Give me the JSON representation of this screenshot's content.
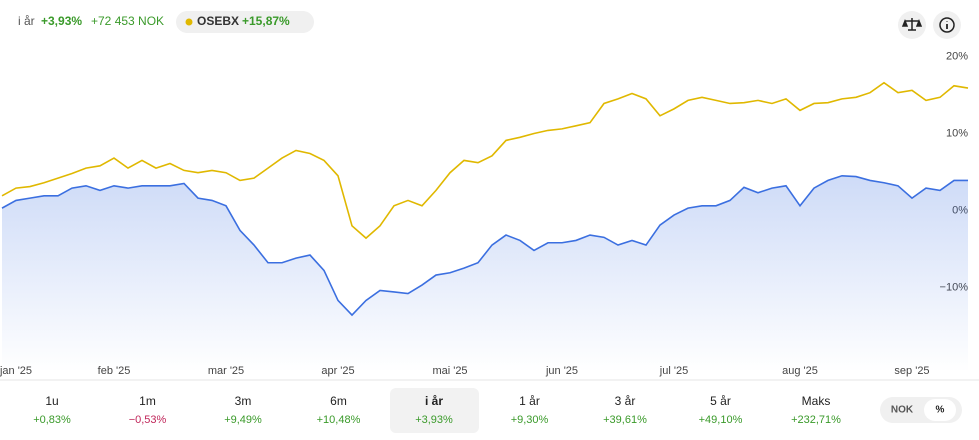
{
  "header": {
    "period": "i år",
    "change": "+3,93%",
    "amount": "+72 453 NOK",
    "benchmark_change": "+15,87%"
  },
  "chart_data": {
    "type": "line",
    "categories": [
      null,
      "jan '25",
      null,
      null,
      null,
      null,
      null,
      null,
      "feb '25",
      null,
      null,
      null,
      null,
      null,
      null,
      null,
      "mar '25",
      null,
      null,
      null,
      null,
      null,
      null,
      null,
      "apr '25",
      null,
      null,
      null,
      null,
      null,
      null,
      null,
      "mai '25",
      null,
      null,
      null,
      null,
      null,
      null,
      null,
      "jun '25",
      null,
      null,
      null,
      null,
      null,
      null,
      null,
      "jul '25",
      null,
      null,
      null,
      null,
      null,
      null,
      null,
      null,
      "aug '25",
      null,
      null,
      null,
      null,
      null,
      null,
      null,
      "sep '25",
      null,
      null,
      null,
      null
    ],
    "series": [
      {
        "color": "#3b6fe0",
        "values": [
          0.3,
          1.3,
          1.6,
          1.9,
          1.9,
          2.9,
          3.2,
          2.6,
          3.2,
          2.9,
          3.2,
          3.2,
          3.2,
          3.5,
          1.6,
          1.3,
          0.6,
          -2.6,
          -4.5,
          -6.8,
          -6.8,
          -6.2,
          -5.8,
          -7.8,
          -11.7,
          -13.6,
          -11.7,
          -10.4,
          -10.6,
          -10.8,
          -9.7,
          -8.4,
          -8.1,
          -7.5,
          -6.8,
          -4.5,
          -3.2,
          -3.9,
          -5.2,
          -4.2,
          -4.2,
          -3.9,
          -3.2,
          -3.5,
          -4.5,
          -3.9,
          -4.5,
          -1.9,
          -0.6,
          0.3,
          0.6,
          0.6,
          1.3,
          3.0,
          2.3,
          2.9,
          3.2,
          0.6,
          2.9,
          3.9,
          4.5,
          4.4,
          3.9,
          3.6,
          3.2,
          1.6,
          2.9,
          2.6,
          3.9,
          3.9
        ]
      },
      {
        "name": "OSEBX",
        "color": "#e0b800",
        "values": [
          1.9,
          2.9,
          3.1,
          3.6,
          4.2,
          4.8,
          5.5,
          5.8,
          6.8,
          5.5,
          6.5,
          5.5,
          6.1,
          5.2,
          4.9,
          5.2,
          4.9,
          3.9,
          4.2,
          5.5,
          6.8,
          7.8,
          7.4,
          6.5,
          4.5,
          -2.0,
          -3.6,
          -2.0,
          0.6,
          1.3,
          0.6,
          2.6,
          4.9,
          6.5,
          6.2,
          7.1,
          9.1,
          9.5,
          10.0,
          10.4,
          10.6,
          11.0,
          11.4,
          13.9,
          14.5,
          15.2,
          14.5,
          12.3,
          13.2,
          14.3,
          14.7,
          14.3,
          13.9,
          14.0,
          14.3,
          13.9,
          14.5,
          13.0,
          13.9,
          14.0,
          14.5,
          14.7,
          15.3,
          16.6,
          15.3,
          15.6,
          14.3,
          14.7,
          16.2,
          15.9
        ]
      }
    ],
    "ylim": [
      -21,
      21.5
    ],
    "yticks": [
      {
        "value": 20,
        "label": "20%"
      },
      {
        "value": 10,
        "label": "10%"
      },
      {
        "value": 0,
        "label": "0%"
      },
      {
        "value": -10,
        "label": "−10%"
      }
    ],
    "grid": false
  },
  "tabs": [
    {
      "label": "1u",
      "change": "+0,83%"
    },
    {
      "label": "1m",
      "change": "−0,53%"
    },
    {
      "label": "3m",
      "change": "+9,49%"
    },
    {
      "label": "6m",
      "change": "+10,48%"
    },
    {
      "label": "i år",
      "change": "+3,93%"
    },
    {
      "label": "1 år",
      "change": "+9,30%"
    },
    {
      "label": "3 år",
      "change": "+39,61%"
    },
    {
      "label": "5 år",
      "change": "+49,10%"
    },
    {
      "label": "Maks",
      "change": "+232,71%"
    }
  ],
  "selected_tab": 4,
  "toggle": [
    "NOK",
    "%"
  ],
  "selected_toggle": 1
}
